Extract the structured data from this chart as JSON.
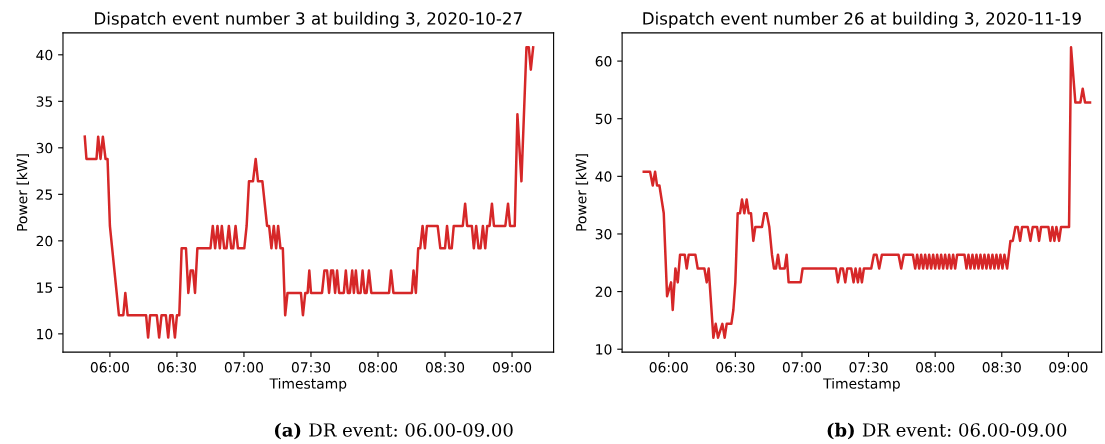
{
  "chart_data": [
    {
      "type": "line",
      "title": "Dispatch event number 3 at building 3, 2020-10-27",
      "xlabel": "Timestamp",
      "ylabel": "Power [kW]",
      "annotations": [
        "(a) DR event: 06.00-09.00"
      ],
      "xlim": [
        5.65,
        9.31
      ],
      "ylim": [
        8.04,
        42.36
      ],
      "xticks": [
        {
          "value": 6,
          "label": "06:00"
        },
        {
          "value": 6.5,
          "label": "06:30"
        },
        {
          "value": 7,
          "label": "07:00"
        },
        {
          "value": 7.5,
          "label": "07:30"
        },
        {
          "value": 8,
          "label": "08:00"
        },
        {
          "value": 8.5,
          "label": "08:30"
        },
        {
          "value": 9,
          "label": "09:00"
        }
      ],
      "yticks": [
        10,
        15,
        20,
        25,
        30,
        35,
        40
      ],
      "series": [
        {
          "color": "#d62728",
          "x": [
            5.8125,
            5.825,
            5.9,
            5.9125,
            5.93,
            5.9475,
            5.9675,
            5.9825,
            6.0,
            6.0675,
            6.1,
            6.115,
            6.1325,
            6.27,
            6.285,
            6.3,
            6.35,
            6.3675,
            6.385,
            6.4175,
            6.435,
            6.45,
            6.4675,
            6.485,
            6.5,
            6.5175,
            6.535,
            6.5675,
            6.585,
            6.6025,
            6.62,
            6.635,
            6.6525,
            6.75,
            6.7675,
            6.785,
            6.8025,
            6.82,
            6.835,
            6.8525,
            6.87,
            6.8875,
            6.905,
            6.92,
            6.9375,
            6.955,
            7.0025,
            7.02,
            7.0375,
            7.0675,
            7.0875,
            7.105,
            7.1375,
            7.1725,
            7.1875,
            7.205,
            7.2225,
            7.24,
            7.255,
            7.2725,
            7.29,
            7.3075,
            7.325,
            7.425,
            7.44,
            7.4575,
            7.475,
            7.4875,
            7.5,
            7.5825,
            7.6,
            7.62,
            7.635,
            7.65,
            7.665,
            7.68,
            7.695,
            7.71,
            7.745,
            7.76,
            7.775,
            7.79,
            7.8075,
            7.82,
            7.835,
            7.85,
            7.87,
            7.885,
            7.9,
            7.915,
            7.9325,
            7.95,
            8.0825,
            8.0975,
            8.115,
            8.2525,
            8.265,
            8.2825,
            8.3,
            8.315,
            8.3325,
            8.35,
            8.365,
            8.445,
            8.465,
            8.5,
            8.515,
            8.5325,
            8.55,
            8.565,
            8.6325,
            8.65,
            8.665,
            8.7,
            8.715,
            8.7325,
            8.75,
            8.765,
            8.7825,
            8.8,
            8.815,
            8.8325,
            8.85,
            8.865,
            8.95,
            8.97,
            8.985,
            9.02,
            9.04,
            9.07,
            9.1075,
            9.125,
            9.14,
            9.1575
          ],
          "values": [
            31.2,
            28.8,
            28.8,
            31.2,
            28.8,
            31.2,
            28.8,
            28.8,
            21.6,
            12.0,
            12.0,
            14.4,
            12.0,
            12.0,
            9.6,
            12.0,
            12.0,
            9.6,
            12.0,
            12.0,
            9.6,
            12.0,
            12.0,
            9.6,
            12.0,
            12.0,
            19.2,
            19.2,
            14.4,
            16.8,
            16.8,
            14.4,
            19.2,
            19.2,
            21.6,
            19.2,
            21.6,
            19.2,
            21.6,
            19.2,
            19.2,
            21.6,
            19.2,
            19.2,
            21.6,
            19.2,
            19.2,
            21.6,
            26.4,
            26.4,
            28.8,
            26.4,
            26.4,
            21.6,
            21.6,
            19.2,
            21.6,
            19.2,
            21.6,
            19.2,
            19.2,
            12.0,
            14.4,
            14.4,
            12.0,
            14.4,
            14.4,
            16.8,
            14.4,
            14.4,
            16.8,
            16.8,
            14.4,
            16.8,
            16.8,
            14.4,
            16.8,
            14.4,
            14.4,
            16.8,
            14.4,
            14.4,
            16.8,
            14.4,
            16.8,
            14.4,
            14.4,
            16.8,
            14.4,
            14.4,
            16.8,
            14.4,
            14.4,
            16.8,
            14.4,
            14.4,
            16.8,
            14.4,
            19.2,
            19.2,
            21.6,
            19.2,
            21.6,
            21.6,
            19.2,
            19.2,
            21.6,
            19.2,
            19.2,
            21.6,
            21.6,
            24.0,
            21.6,
            21.6,
            19.2,
            21.6,
            19.2,
            19.2,
            21.6,
            19.2,
            21.6,
            21.6,
            24.0,
            21.6,
            21.6,
            24.0,
            21.6,
            21.6,
            33.6,
            26.4,
            40.8,
            40.8,
            38.4,
            40.8
          ]
        }
      ]
    },
    {
      "type": "line",
      "title": "Dispatch event number 26 at building 3, 2020-11-19",
      "xlabel": "Timestamp",
      "ylabel": "Power [kW]",
      "annotations": [
        "(b) DR event: 06.00-09.00"
      ],
      "xlim": [
        5.65,
        9.25
      ],
      "ylim": [
        9.5,
        64.9
      ],
      "xticks": [
        {
          "value": 6,
          "label": "06:00"
        },
        {
          "value": 6.5,
          "label": "06:30"
        },
        {
          "value": 7,
          "label": "07:00"
        },
        {
          "value": 7.5,
          "label": "07:30"
        },
        {
          "value": 8,
          "label": "08:00"
        },
        {
          "value": 8.5,
          "label": "08:30"
        },
        {
          "value": 9,
          "label": "09:00"
        }
      ],
      "yticks": [
        10,
        20,
        30,
        40,
        50,
        60
      ],
      "series": [
        {
          "color": "#d62728",
          "x": [
            5.8125,
            5.86,
            5.88,
            5.8975,
            5.9125,
            5.93,
            5.9625,
            5.9875,
            6.0175,
            6.03,
            6.05,
            6.0675,
            6.085,
            6.12,
            6.135,
            6.15,
            6.2,
            6.2175,
            6.2675,
            6.285,
            6.3,
            6.335,
            6.3525,
            6.37,
            6.4025,
            6.42,
            6.435,
            6.47,
            6.485,
            6.5,
            6.5175,
            6.535,
            6.55,
            6.5675,
            6.585,
            6.6,
            6.6175,
            6.635,
            6.65,
            6.7,
            6.7175,
            6.735,
            6.755,
            6.775,
            6.79,
            6.805,
            6.82,
            6.835,
            6.87,
            6.885,
            6.9,
            6.99,
            7.005,
            7.255,
            7.27,
            7.29,
            7.3075,
            7.325,
            7.34,
            7.37,
            7.3875,
            7.4025,
            7.42,
            7.435,
            7.45,
            7.465,
            7.52,
            7.54,
            7.56,
            7.58,
            7.6,
            7.725,
            7.745,
            7.765,
            7.8325,
            7.85,
            7.865,
            7.88,
            7.895,
            7.91,
            7.925,
            7.94,
            7.955,
            7.97,
            7.985,
            8.0,
            8.015,
            8.03,
            8.045,
            8.06,
            8.075,
            8.09,
            8.105,
            8.12,
            8.135,
            8.15,
            8.165,
            8.22,
            8.235,
            8.25,
            8.265,
            8.28,
            8.295,
            8.31,
            8.325,
            8.34,
            8.355,
            8.37,
            8.385,
            8.4,
            8.415,
            8.43,
            8.445,
            8.46,
            8.475,
            8.49,
            8.505,
            8.52,
            8.54,
            8.565,
            8.5825,
            8.6025,
            8.62,
            8.6375,
            8.6525,
            8.695,
            8.715,
            8.7325,
            8.765,
            8.78,
            8.795,
            8.85,
            8.865,
            8.88,
            8.895,
            8.91,
            8.93,
            8.945,
            9.005,
            9.02,
            9.0525,
            9.09,
            9.1075,
            9.125,
            9.1625
          ],
          "values": [
            40.8,
            40.8,
            38.4,
            40.8,
            38.4,
            38.4,
            33.6,
            19.2,
            21.6,
            16.8,
            24.0,
            21.6,
            26.4,
            26.4,
            24.0,
            26.4,
            26.4,
            24.0,
            24.0,
            21.6,
            24.0,
            12.0,
            14.4,
            12.0,
            14.4,
            12.0,
            14.4,
            14.4,
            16.8,
            21.6,
            33.6,
            33.6,
            36.0,
            33.6,
            36.0,
            33.6,
            33.6,
            28.8,
            31.2,
            31.2,
            33.6,
            33.6,
            31.2,
            26.4,
            24.0,
            24.0,
            26.4,
            24.0,
            24.0,
            26.4,
            21.6,
            21.6,
            24.0,
            24.0,
            21.6,
            24.0,
            24.0,
            21.6,
            24.0,
            24.0,
            21.6,
            24.0,
            21.6,
            24.0,
            21.6,
            24.0,
            24.0,
            26.4,
            26.4,
            24.0,
            26.4,
            26.4,
            24.0,
            26.4,
            26.4,
            24.0,
            26.4,
            24.0,
            26.4,
            24.0,
            26.4,
            24.0,
            26.4,
            24.0,
            26.4,
            24.0,
            26.4,
            24.0,
            26.4,
            24.0,
            26.4,
            24.0,
            26.4,
            24.0,
            26.4,
            24.0,
            26.4,
            26.4,
            24.0,
            26.4,
            24.0,
            26.4,
            24.0,
            26.4,
            24.0,
            26.4,
            24.0,
            26.4,
            24.0,
            26.4,
            24.0,
            26.4,
            24.0,
            26.4,
            24.0,
            26.4,
            24.0,
            26.4,
            24.0,
            28.8,
            28.8,
            31.2,
            31.2,
            28.8,
            31.2,
            31.2,
            28.8,
            31.2,
            31.2,
            28.8,
            31.2,
            31.2,
            28.8,
            31.2,
            28.8,
            31.2,
            28.8,
            31.2,
            31.2,
            62.4,
            52.8,
            52.8,
            55.2,
            52.8,
            52.8
          ]
        }
      ]
    }
  ]
}
